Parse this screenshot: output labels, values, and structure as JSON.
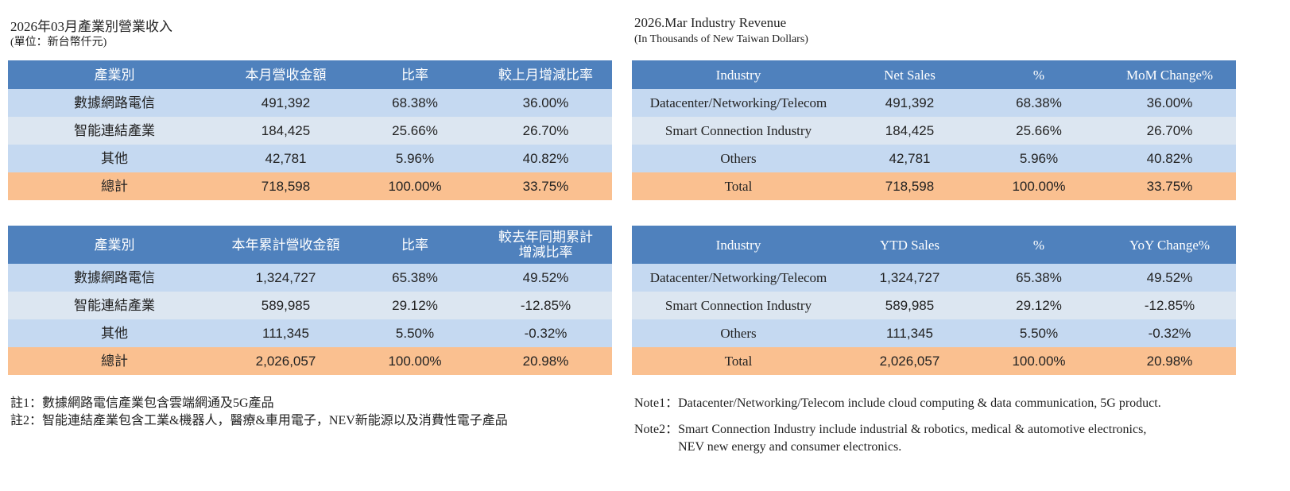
{
  "left": {
    "title": "2026年03月產業別營業收入",
    "subtitle": "(單位：新台幣仟元)",
    "tables": [
      {
        "header": [
          "產業別",
          "本月營收金額",
          "比率",
          "較上月增減比率"
        ],
        "rows": [
          [
            "數據網路電信",
            "491,392",
            "68.38%",
            "36.00%"
          ],
          [
            "智能連結產業",
            "184,425",
            "25.66%",
            "26.70%"
          ],
          [
            "其他",
            "42,781",
            "5.96%",
            "40.82%"
          ],
          [
            "總計",
            "718,598",
            "100.00%",
            "33.75%"
          ]
        ]
      },
      {
        "header": [
          "產業別",
          "本年累計營收金額",
          "比率",
          "較去年同期累計\n增減比率"
        ],
        "rows": [
          [
            "數據網路電信",
            "1,324,727",
            "65.38%",
            "49.52%"
          ],
          [
            "智能連結產業",
            "589,985",
            "29.12%",
            "-12.85%"
          ],
          [
            "其他",
            "111,345",
            "5.50%",
            "-0.32%"
          ],
          [
            "總計",
            "2,026,057",
            "100.00%",
            "20.98%"
          ]
        ]
      }
    ],
    "notes": [
      {
        "label": "註1：",
        "text": "數據網路電信產業包含雲端網通及5G產品"
      },
      {
        "label": "註2：",
        "text": "智能連結產業包含工業&機器人，醫療&車用電子，NEV新能源以及消費性電子產品"
      }
    ]
  },
  "right": {
    "title": "2026.Mar  Industry Revenue",
    "subtitle": "(In Thousands of New Taiwan Dollars)",
    "tables": [
      {
        "header": [
          "Industry",
          "Net Sales",
          "%",
          "MoM Change%"
        ],
        "rows": [
          [
            "Datacenter/Networking/Telecom",
            "491,392",
            "68.38%",
            "36.00%"
          ],
          [
            "Smart Connection Industry",
            "184,425",
            "25.66%",
            "26.70%"
          ],
          [
            "Others",
            "42,781",
            "5.96%",
            "40.82%"
          ],
          [
            "Total",
            "718,598",
            "100.00%",
            "33.75%"
          ]
        ]
      },
      {
        "header": [
          "Industry",
          "YTD Sales",
          "%",
          "YoY Change%"
        ],
        "rows": [
          [
            "Datacenter/Networking/Telecom",
            "1,324,727",
            "65.38%",
            "49.52%"
          ],
          [
            "Smart Connection Industry",
            "589,985",
            "29.12%",
            "-12.85%"
          ],
          [
            "Others",
            "111,345",
            "5.50%",
            "-0.32%"
          ],
          [
            "Total",
            "2,026,057",
            "100.00%",
            "20.98%"
          ]
        ]
      }
    ],
    "notes": [
      {
        "label": "Note1：",
        "text": "Datacenter/Networking/Telecom include cloud computing & data communication, 5G product."
      },
      {
        "label": "Note2：",
        "text": "Smart Connection Industry include industrial & robotics, medical & automotive electronics,\nNEV new energy and consumer electronics."
      }
    ]
  }
}
